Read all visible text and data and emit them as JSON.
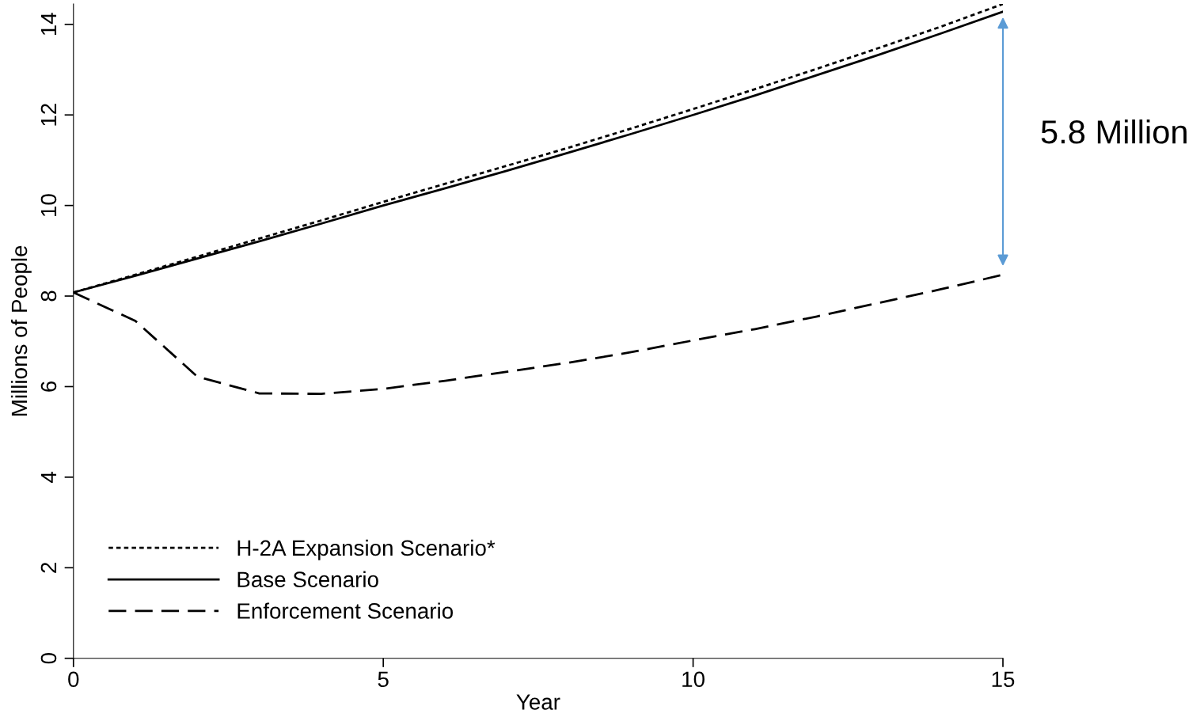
{
  "chart_data": {
    "type": "line",
    "xlabel": "Year",
    "ylabel": "Millions of People",
    "x": [
      0,
      1,
      2,
      3,
      4,
      5,
      6,
      7,
      8,
      9,
      10,
      11,
      12,
      13,
      14,
      15
    ],
    "series": [
      {
        "name": "H-2A Expansion Scenario*",
        "color": "#000000",
        "line_style": "dotted",
        "values": [
          8.08,
          8.47,
          8.87,
          9.27,
          9.67,
          10.08,
          10.48,
          10.88,
          11.28,
          11.7,
          12.13,
          12.57,
          13.02,
          13.48,
          13.95,
          14.45
        ]
      },
      {
        "name": "Base Scenario",
        "color": "#000000",
        "line_style": "solid",
        "values": [
          8.08,
          8.45,
          8.83,
          9.21,
          9.6,
          10.0,
          10.38,
          10.77,
          11.17,
          11.58,
          12.0,
          12.43,
          12.88,
          13.33,
          13.8,
          14.28
        ]
      },
      {
        "name": "Enforcement Scenario",
        "color": "#000000",
        "line_style": "dashed",
        "values": [
          8.08,
          7.45,
          6.22,
          5.85,
          5.84,
          5.95,
          6.13,
          6.33,
          6.53,
          6.76,
          7.02,
          7.27,
          7.55,
          7.85,
          8.15,
          8.47
        ]
      }
    ],
    "xlim": [
      0,
      15
    ],
    "xticks": [
      0,
      5,
      10,
      15
    ],
    "ylim": [
      0,
      14.45
    ],
    "yticks": [
      0,
      2,
      4,
      6,
      8,
      10,
      12,
      14
    ],
    "grid": false,
    "legend": "bottom left",
    "marker": "none",
    "annotations": [
      "5.8 Million"
    ]
  }
}
